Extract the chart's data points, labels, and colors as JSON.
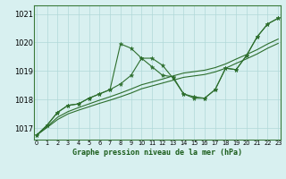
{
  "title": "Graphe pression niveau de la mer (hPa)",
  "background_color": "#d8f0f0",
  "grid_color": "#b0d8d8",
  "line_color": "#2d6e2d",
  "x_min": 0,
  "x_max": 23,
  "y_min": 1016.6,
  "y_max": 1021.3,
  "yticks": [
    1017,
    1018,
    1019,
    1020,
    1021
  ],
  "line1_y": [
    1016.75,
    1017.1,
    1017.55,
    1017.8,
    1017.85,
    1018.05,
    1018.2,
    1018.35,
    1019.95,
    1019.8,
    1019.45,
    1019.45,
    1019.2,
    1018.75,
    1018.2,
    1018.1,
    1018.05,
    1018.35,
    1019.1,
    1019.05,
    1019.55,
    1020.2,
    1020.65,
    1020.85
  ],
  "line2_y": [
    1016.75,
    1017.1,
    1017.55,
    1017.8,
    1017.85,
    1018.05,
    1018.2,
    1018.35,
    1018.55,
    1018.85,
    1019.45,
    1019.15,
    1018.85,
    1018.8,
    1018.2,
    1018.05,
    1018.05,
    1018.35,
    1019.1,
    1019.05,
    1019.55,
    1020.2,
    1020.65,
    1020.85
  ],
  "line3_y": [
    1016.75,
    1017.05,
    1017.38,
    1017.58,
    1017.72,
    1017.85,
    1017.98,
    1018.1,
    1018.23,
    1018.37,
    1018.52,
    1018.62,
    1018.72,
    1018.83,
    1018.93,
    1018.98,
    1019.03,
    1019.12,
    1019.25,
    1019.42,
    1019.58,
    1019.75,
    1019.95,
    1020.12
  ],
  "line4_y": [
    1016.75,
    1017.02,
    1017.3,
    1017.5,
    1017.63,
    1017.75,
    1017.87,
    1017.98,
    1018.1,
    1018.23,
    1018.38,
    1018.48,
    1018.58,
    1018.68,
    1018.78,
    1018.83,
    1018.88,
    1018.97,
    1019.1,
    1019.27,
    1019.43,
    1019.6,
    1019.8,
    1019.97
  ]
}
